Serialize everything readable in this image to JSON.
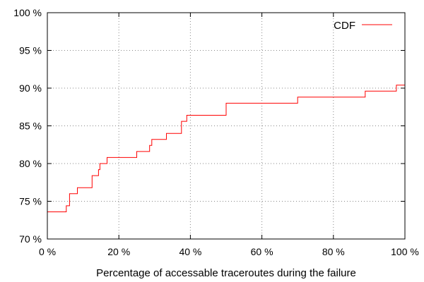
{
  "chart_data": {
    "type": "line",
    "step": true,
    "title": "",
    "xlabel": "Percentage of accessable traceroutes during the failure",
    "ylabel": "",
    "xlim": [
      0,
      100
    ],
    "ylim": [
      70,
      100
    ],
    "grid": true,
    "legend_position": "top-right",
    "x_ticks": [
      0,
      20,
      40,
      60,
      80,
      100
    ],
    "x_tick_labels": [
      "0 %",
      "20 %",
      "40 %",
      "60 %",
      "80 %",
      "100 %"
    ],
    "y_ticks": [
      70,
      75,
      80,
      85,
      90,
      95,
      100
    ],
    "y_tick_labels": [
      "70 %",
      "75 %",
      "80 %",
      "85 %",
      "90 %",
      "95 %",
      "100 %"
    ],
    "series": [
      {
        "name": "CDF",
        "color": "#ff0000",
        "points": [
          [
            0,
            73.6
          ],
          [
            5.3,
            73.6
          ],
          [
            5.3,
            74.4
          ],
          [
            6.2,
            74.4
          ],
          [
            6.2,
            76.0
          ],
          [
            8.4,
            76.0
          ],
          [
            8.4,
            76.8
          ],
          [
            12.5,
            76.8
          ],
          [
            12.5,
            78.4
          ],
          [
            14.3,
            78.4
          ],
          [
            14.3,
            79.2
          ],
          [
            14.7,
            79.2
          ],
          [
            14.7,
            80.0
          ],
          [
            16.7,
            80.0
          ],
          [
            16.7,
            80.8
          ],
          [
            25.0,
            80.8
          ],
          [
            25.0,
            81.6
          ],
          [
            28.6,
            81.6
          ],
          [
            28.6,
            82.4
          ],
          [
            29.2,
            82.4
          ],
          [
            29.2,
            83.2
          ],
          [
            33.3,
            83.2
          ],
          [
            33.3,
            84.0
          ],
          [
            37.5,
            84.0
          ],
          [
            37.5,
            85.6
          ],
          [
            39.0,
            85.6
          ],
          [
            39.0,
            86.4
          ],
          [
            50.0,
            86.4
          ],
          [
            50.0,
            88.0
          ],
          [
            70.0,
            88.0
          ],
          [
            70.0,
            88.8
          ],
          [
            88.9,
            88.8
          ],
          [
            88.9,
            89.6
          ],
          [
            97.6,
            89.6
          ],
          [
            97.6,
            90.4
          ],
          [
            100,
            90.4
          ]
        ]
      }
    ]
  }
}
